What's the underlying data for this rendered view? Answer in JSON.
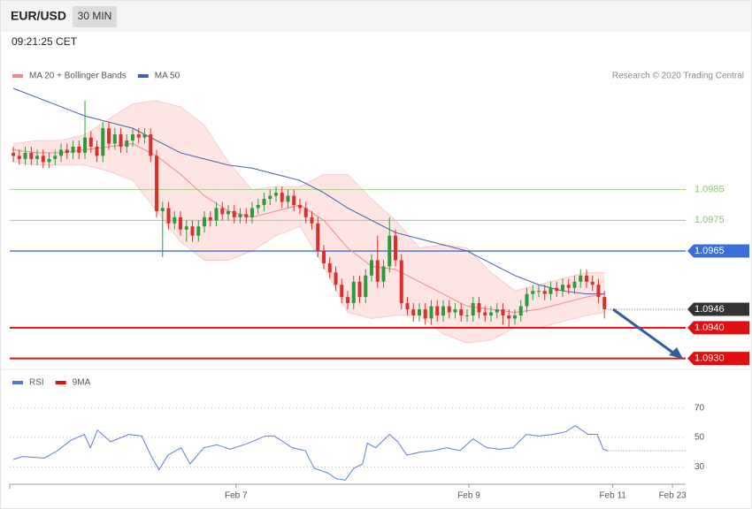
{
  "header": {
    "symbol": "EUR/USD",
    "interval": "30 MIN",
    "time": "09:21:25 CET"
  },
  "chart_data": [
    {
      "type": "candlestick",
      "legend": [
        {
          "name": "MA 20 + Bollinger Bands",
          "color": "#f08a8a"
        },
        {
          "name": "MA 50",
          "color": "#3f5fa8"
        }
      ],
      "credit": "Research © 2020 Trading Central",
      "up_color": "#2f9a3a",
      "down_color": "#d9302c",
      "open": [
        1.0997,
        1.0996,
        1.0995,
        1.0997,
        1.0995,
        1.0996,
        1.0994,
        1.0995,
        1.0996,
        1.0998,
        1.0997,
        1.0999,
        1.0997,
        1.1002,
        1.0999,
        1.0996,
        1.1005,
        1.1,
        1.1003,
        1.0999,
        1.1001,
        1.1003,
        1.1002,
        1.1003,
        1.0996,
        1.0978,
        1.0979,
        1.0974,
        1.0976,
        1.0972,
        1.0973,
        1.097,
        1.0973,
        1.0976,
        1.0975,
        1.0979,
        1.0977,
        1.0978,
        1.0976,
        1.0977,
        1.0976,
        1.0979,
        1.098,
        1.0982,
        1.0983,
        1.0984,
        1.0981,
        1.0983,
        1.098,
        1.0979,
        1.0976,
        1.0974,
        1.0965,
        1.0961,
        1.0958,
        1.0954,
        1.095,
        1.0948,
        1.0955,
        1.095,
        1.0957,
        1.0962,
        1.0955,
        1.096,
        1.097,
        1.0962,
        1.0948,
        1.0946,
        1.0944,
        1.0946,
        1.0943,
        1.0947,
        1.0944,
        1.0947,
        1.0945,
        1.0946,
        1.0944,
        1.0944,
        1.0948,
        1.0945,
        1.0944,
        1.0945,
        1.0946,
        1.0944,
        1.0943,
        1.0944,
        1.0947,
        1.0951,
        1.0952,
        1.0952,
        1.0951,
        1.0953,
        1.0952,
        1.0954,
        1.0953,
        1.0955,
        1.0957,
        1.0955,
        1.0954,
        1.095
      ],
      "high": [
        1.0999,
        1.0998,
        1.0999,
        1.0999,
        1.0998,
        1.0998,
        1.0997,
        1.0998,
        1.1,
        1.1,
        1.1001,
        1.1001,
        1.1014,
        1.1004,
        1.1001,
        1.1007,
        1.1007,
        1.1005,
        1.1005,
        1.1003,
        1.1005,
        1.1005,
        1.1005,
        1.1005,
        1.0998,
        1.0981,
        1.0981,
        1.0978,
        1.0978,
        1.0975,
        1.0975,
        1.0975,
        1.0978,
        1.0978,
        1.0981,
        1.0981,
        1.098,
        1.098,
        1.0979,
        1.0979,
        1.0981,
        1.0982,
        1.0984,
        1.0985,
        1.0986,
        1.0986,
        1.0985,
        1.0985,
        1.0982,
        1.0981,
        1.0978,
        1.0976,
        1.0967,
        1.0963,
        1.096,
        1.0956,
        1.0952,
        1.0957,
        1.0957,
        1.0959,
        1.0964,
        1.097,
        1.0962,
        1.0976,
        1.0972,
        1.0964,
        1.095,
        1.0948,
        1.0948,
        1.0948,
        1.0949,
        1.0949,
        1.0949,
        1.0949,
        1.0948,
        1.0948,
        1.0946,
        1.095,
        1.095,
        1.0947,
        1.0947,
        1.0948,
        1.0948,
        1.0946,
        1.0946,
        1.0949,
        1.0953,
        1.0954,
        1.0954,
        1.0954,
        1.0955,
        1.0955,
        1.0956,
        1.0956,
        1.0957,
        1.0959,
        1.0959,
        1.0957,
        1.0956,
        1.0952
      ],
      "low": [
        1.0994,
        1.0993,
        1.0993,
        1.0993,
        1.0993,
        1.0992,
        1.0992,
        1.0993,
        1.0994,
        1.0995,
        1.0995,
        1.0995,
        1.0995,
        1.0997,
        1.0994,
        1.0994,
        1.0998,
        1.0998,
        1.0997,
        1.0997,
        1.0999,
        1.1,
        1.1,
        1.0994,
        1.0976,
        1.0963,
        1.0972,
        1.0972,
        1.097,
        1.0968,
        1.0968,
        1.0968,
        1.0971,
        1.0973,
        1.0973,
        1.0975,
        1.0975,
        1.0974,
        1.0974,
        1.0974,
        1.0974,
        1.0977,
        1.0978,
        1.098,
        1.0981,
        1.0979,
        1.0979,
        1.0978,
        1.0977,
        1.0974,
        1.0972,
        1.0963,
        1.0959,
        1.0956,
        1.0952,
        1.0948,
        1.0946,
        1.0946,
        1.0948,
        1.0948,
        1.0955,
        1.0953,
        1.0953,
        1.0958,
        1.096,
        1.0946,
        1.0944,
        1.0942,
        1.0942,
        1.0941,
        1.0941,
        1.0942,
        1.0942,
        1.0943,
        1.0943,
        1.0942,
        1.0942,
        1.0942,
        1.0943,
        1.0942,
        1.0942,
        1.0943,
        1.0941,
        1.094,
        1.0941,
        1.0942,
        1.0945,
        1.0949,
        1.095,
        1.0949,
        1.0949,
        1.095,
        1.095,
        1.0951,
        1.0951,
        1.0953,
        1.0953,
        1.0952,
        1.0948,
        1.0943
      ],
      "close": [
        1.0996,
        1.0995,
        1.0997,
        1.0995,
        1.0996,
        1.0994,
        1.0995,
        1.0996,
        1.0998,
        1.0997,
        1.0999,
        1.0997,
        1.1002,
        1.0999,
        1.0996,
        1.1005,
        1.1,
        1.1003,
        1.0999,
        1.1001,
        1.1003,
        1.1002,
        1.1003,
        1.0996,
        1.0978,
        1.0979,
        1.0974,
        1.0976,
        1.0972,
        1.0973,
        1.097,
        1.0973,
        1.0976,
        1.0975,
        1.0979,
        1.0977,
        1.0978,
        1.0976,
        1.0977,
        1.0976,
        1.0979,
        1.098,
        1.0982,
        1.0983,
        1.0984,
        1.0981,
        1.0983,
        1.098,
        1.0979,
        1.0976,
        1.0974,
        1.0965,
        1.0961,
        1.0958,
        1.0954,
        1.095,
        1.0948,
        1.0955,
        1.095,
        1.0957,
        1.0962,
        1.0955,
        1.096,
        1.097,
        1.0962,
        1.0948,
        1.0946,
        1.0944,
        1.0946,
        1.0943,
        1.0947,
        1.0944,
        1.0947,
        1.0945,
        1.0946,
        1.0944,
        1.0944,
        1.0948,
        1.0945,
        1.0944,
        1.0945,
        1.0946,
        1.0944,
        1.0943,
        1.0944,
        1.0947,
        1.0951,
        1.0952,
        1.0952,
        1.0951,
        1.0953,
        1.0952,
        1.0954,
        1.0953,
        1.0955,
        1.0957,
        1.0955,
        1.0954,
        1.095,
        1.0946
      ],
      "indicator_x": [
        0,
        4,
        8,
        12,
        16,
        20,
        24,
        28,
        32,
        36,
        40,
        44,
        48,
        52,
        56,
        60,
        64,
        68,
        72,
        76,
        80,
        84,
        88,
        92,
        96,
        99
      ],
      "ma20": {
        "color": "#f08a8a",
        "values": [
          1.0998,
          1.0997,
          1.0997,
          1.0998,
          1.0999,
          1.1,
          1.0996,
          1.099,
          1.0983,
          1.0978,
          1.0976,
          1.0978,
          1.098,
          1.0975,
          1.0966,
          1.096,
          1.0959,
          1.0955,
          1.0951,
          1.0947,
          1.0946,
          1.0945,
          1.0946,
          1.0948,
          1.095,
          1.0951
        ]
      },
      "ma50": {
        "color": "#3f5fa8",
        "values": [
          1.1018,
          1.1015,
          1.1012,
          1.1009,
          1.1007,
          1.1005,
          1.1001,
          1.0997,
          1.0995,
          1.0993,
          1.0992,
          1.099,
          1.0988,
          1.0984,
          1.0979,
          1.0975,
          1.0971,
          1.0969,
          1.0967,
          1.0965,
          1.0961,
          1.0957,
          1.0954,
          1.0952,
          1.0951,
          1.0951
        ]
      },
      "bollinger": {
        "color": "#ffd9d9",
        "upper": [
          1.1,
          1.1001,
          1.1001,
          1.1003,
          1.1008,
          1.1013,
          1.1014,
          1.1012,
          1.1006,
          1.0994,
          1.0985,
          1.0986,
          1.0986,
          1.099,
          1.099,
          1.0982,
          1.0975,
          1.0966,
          1.0967,
          1.0966,
          1.0958,
          1.0952,
          1.0954,
          1.0956,
          1.0958,
          1.0958
        ],
        "lower": [
          1.0994,
          1.0993,
          1.0993,
          1.0993,
          1.0991,
          1.0988,
          1.0978,
          1.0968,
          1.0962,
          1.0962,
          1.0965,
          1.097,
          1.0973,
          1.096,
          1.0945,
          1.0943,
          1.0944,
          1.0944,
          1.0938,
          1.0935,
          1.0936,
          1.094,
          1.094,
          1.0942,
          1.0944,
          1.0945
        ]
      },
      "levels": [
        {
          "value": 1.0985,
          "color": "#8cc86a",
          "box": false,
          "style": "thin"
        },
        {
          "value": 1.0975,
          "color": "#8cc86a",
          "box": false,
          "style": "thin"
        },
        {
          "value": 1.0965,
          "color": "#3a6fd8",
          "box": true,
          "style": "solid"
        },
        {
          "value": 1.0946,
          "color": "#333333",
          "box": true,
          "style": "dotted"
        },
        {
          "value": 1.094,
          "label": "1.0940",
          "color": "#e01010",
          "box": true,
          "style": "thick"
        },
        {
          "value": 1.093,
          "label": "1.0930",
          "color": "#e01010",
          "box": true,
          "style": "thick"
        }
      ],
      "xlim": [
        -0.6,
        112.6
      ],
      "ylim": [
        1.0927,
        1.1018
      ]
    },
    {
      "type": "line",
      "legend": [
        {
          "name": "RSI",
          "color": "#5577cc"
        },
        {
          "name": "9MA",
          "color": "#e01010"
        }
      ],
      "x": [
        0,
        1.5,
        5.2,
        7.4,
        9.6,
        11.9,
        12.9,
        14.1,
        16.3,
        19.3,
        21.5,
        23,
        24.4,
        25.9,
        28.1,
        29.6,
        31.9,
        34.1,
        36.3,
        39.3,
        42.2,
        43.7,
        46.7,
        48.9,
        50.4,
        52.6,
        54.1,
        55.6,
        57,
        58.5,
        59.3,
        60.7,
        63,
        64.4,
        65.9,
        68.1,
        70.4,
        72.6,
        74.8,
        77,
        79.3,
        81.5,
        83.7,
        85.9,
        88.1,
        90.4,
        92.6,
        94.1,
        96.3,
        97.8,
        98.8,
        99.5
      ],
      "series": [
        {
          "color": "#5b7fd6",
          "values": [
            35,
            37,
            36,
            41,
            48,
            52,
            43,
            55,
            47,
            52,
            51,
            38,
            28,
            38,
            43,
            32,
            43,
            45,
            42,
            46,
            51,
            51,
            43,
            41,
            29,
            26,
            22,
            21,
            29,
            32,
            46,
            43,
            52,
            47,
            38,
            40,
            41,
            43,
            41,
            49,
            43,
            42,
            43,
            52,
            51,
            52,
            54,
            58,
            52,
            52,
            42,
            41
          ]
        }
      ],
      "xlim": [
        -0.6,
        112.6
      ],
      "ylim": [
        20,
        83
      ],
      "yticks": [
        30,
        50,
        70
      ],
      "grid": true,
      "xticks": [
        {
          "value": 37.3,
          "label": "Feb 7"
        },
        {
          "value": 76.3,
          "label": "Feb 9"
        },
        {
          "value": 100.4,
          "label": "Feb 11"
        },
        {
          "value": 110.4,
          "label": "Feb 23"
        }
      ]
    }
  ]
}
